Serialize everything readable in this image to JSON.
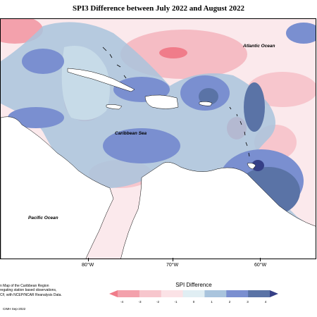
{
  "title": "SPI3 Difference between July 2022 and August 2022",
  "labels": {
    "atlantic": "Atlantic Ocean",
    "caribbean": "Caribbean Sea",
    "pacific": "Pacific Ocean"
  },
  "longitude_ticks": [
    "80°W",
    "70°W",
    "60°W"
  ],
  "footer": {
    "line1": "n Map of the Caribbean Region",
    "line2": "regating station based observations,",
    "line3": "CF, with NCEP/NCAR Reanalysis Data.",
    "credit": "CIMH Sep-2022"
  },
  "legend": {
    "title": "SPI Difference",
    "ticks": [
      "-4",
      "-3",
      "-2",
      "-1",
      "0",
      "1",
      "2",
      "3",
      "4"
    ],
    "colors": [
      "#f07c8a",
      "#f3a1ac",
      "#f7c6cd",
      "#fbe2e6",
      "#e0eef3",
      "#a9c4dd",
      "#7a8fd0",
      "#5a73a6",
      "#353f86"
    ]
  }
}
